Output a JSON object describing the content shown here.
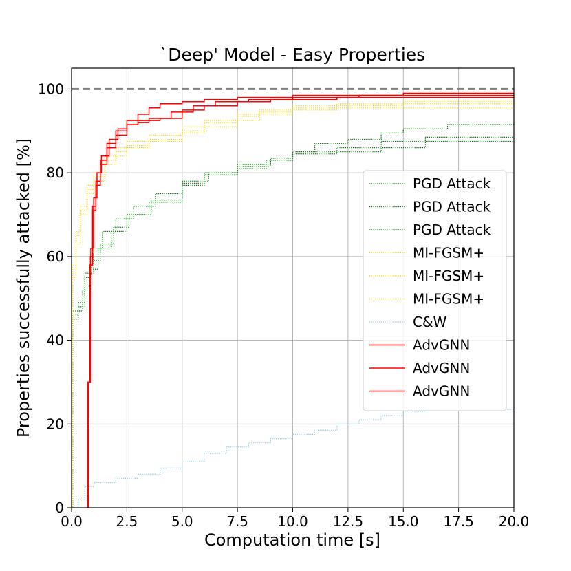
{
  "chart_data": {
    "type": "line",
    "title": "`Deep' Model - Easy Properties",
    "xlabel": "Computation time [s]",
    "ylabel": "Properties successfully attacked [%]",
    "xlim": [
      0,
      20
    ],
    "ylim": [
      0,
      105
    ],
    "x_ticks": [
      0,
      2.5,
      5,
      7.5,
      10,
      12.5,
      15,
      17.5,
      20
    ],
    "x_tick_labels": [
      "0.0",
      "2.5",
      "5.0",
      "7.5",
      "10.0",
      "12.5",
      "15.0",
      "17.5",
      "20.0"
    ],
    "y_ticks": [
      0,
      20,
      40,
      60,
      80,
      100
    ],
    "y_tick_labels": [
      "0",
      "20",
      "40",
      "60",
      "80",
      "100"
    ],
    "grid": true,
    "legend_position": "center-right",
    "reference_line": {
      "y": 100,
      "color": "#808080",
      "style": "dashed"
    },
    "series": [
      {
        "name": "PGD Attack",
        "color": "#008000",
        "style": "dotted",
        "points": [
          [
            0,
            0
          ],
          [
            0.05,
            45
          ],
          [
            0.3,
            47
          ],
          [
            0.5,
            52
          ],
          [
            0.8,
            57
          ],
          [
            1.2,
            62
          ],
          [
            1.8,
            66
          ],
          [
            2.5,
            70
          ],
          [
            3.5,
            73
          ],
          [
            5,
            77
          ],
          [
            6,
            79.5
          ],
          [
            7.5,
            81.5
          ],
          [
            9,
            83
          ],
          [
            10,
            84.5
          ],
          [
            12,
            86
          ],
          [
            14,
            87.5
          ],
          [
            16,
            88.5
          ],
          [
            20,
            89
          ]
        ]
      },
      {
        "name": "PGD Attack",
        "color": "#008000",
        "style": "dotted",
        "points": [
          [
            0,
            0
          ],
          [
            0.05,
            46
          ],
          [
            0.3,
            48
          ],
          [
            0.6,
            55
          ],
          [
            0.9,
            59
          ],
          [
            1.3,
            63
          ],
          [
            1.9,
            67
          ],
          [
            2.6,
            70
          ],
          [
            3.6,
            73.5
          ],
          [
            5,
            77.5
          ],
          [
            6,
            80
          ],
          [
            7.5,
            82
          ],
          [
            9,
            83.5
          ],
          [
            10,
            85
          ],
          [
            12,
            85
          ],
          [
            14,
            86
          ],
          [
            16,
            87.5
          ],
          [
            20,
            88
          ]
        ]
      },
      {
        "name": "PGD Attack",
        "color": "#008000",
        "style": "dotted",
        "points": [
          [
            0,
            0
          ],
          [
            0.05,
            47
          ],
          [
            0.3,
            49
          ],
          [
            0.6,
            56
          ],
          [
            1,
            62
          ],
          [
            1.4,
            66
          ],
          [
            2,
            69
          ],
          [
            2.8,
            72
          ],
          [
            3.8,
            75
          ],
          [
            5,
            78
          ],
          [
            6.2,
            80
          ],
          [
            7.5,
            81
          ],
          [
            8.8,
            83
          ],
          [
            10,
            85
          ],
          [
            11,
            87
          ],
          [
            12.5,
            88
          ],
          [
            14,
            89.5
          ],
          [
            15,
            90.5
          ],
          [
            17,
            91.5
          ],
          [
            20,
            92
          ]
        ]
      },
      {
        "name": "MI-FGSM+",
        "color": "#FFD700",
        "style": "dotted",
        "points": [
          [
            0,
            0
          ],
          [
            0.05,
            55
          ],
          [
            0.2,
            63
          ],
          [
            0.4,
            70
          ],
          [
            0.7,
            75
          ],
          [
            1,
            78
          ],
          [
            1.5,
            82
          ],
          [
            2,
            84
          ],
          [
            2.5,
            86
          ],
          [
            3.5,
            87.5
          ],
          [
            5,
            89.5
          ],
          [
            6,
            91
          ],
          [
            7.5,
            92.5
          ],
          [
            8.5,
            94
          ],
          [
            10,
            95
          ],
          [
            12,
            95.5
          ],
          [
            15,
            95.5
          ],
          [
            20,
            96
          ]
        ]
      },
      {
        "name": "MI-FGSM+",
        "color": "#FFD700",
        "style": "dotted",
        "points": [
          [
            0,
            0
          ],
          [
            0.05,
            57
          ],
          [
            0.2,
            65
          ],
          [
            0.4,
            71
          ],
          [
            0.7,
            76
          ],
          [
            1,
            79
          ],
          [
            1.5,
            83
          ],
          [
            2,
            85
          ],
          [
            2.5,
            86.5
          ],
          [
            3.5,
            88
          ],
          [
            5,
            90
          ],
          [
            6,
            92
          ],
          [
            7.5,
            93.5
          ],
          [
            8.5,
            94.5
          ],
          [
            10,
            95.5
          ],
          [
            12,
            96
          ],
          [
            15,
            96.5
          ],
          [
            20,
            97
          ]
        ]
      },
      {
        "name": "MI-FGSM+",
        "color": "#FFD700",
        "style": "dotted",
        "points": [
          [
            0,
            0
          ],
          [
            0.05,
            58
          ],
          [
            0.2,
            66
          ],
          [
            0.4,
            72
          ],
          [
            0.7,
            77
          ],
          [
            1,
            80
          ],
          [
            1.5,
            84
          ],
          [
            2,
            86
          ],
          [
            2.5,
            87.5
          ],
          [
            3.5,
            89
          ],
          [
            5,
            91
          ],
          [
            6,
            92.5
          ],
          [
            7.5,
            94
          ],
          [
            8.5,
            95
          ],
          [
            10,
            96
          ],
          [
            12,
            96.5
          ],
          [
            15,
            97
          ],
          [
            20,
            98
          ]
        ]
      },
      {
        "name": "C&W",
        "color": "#87CEEB",
        "style": "dotted",
        "points": [
          [
            0,
            0
          ],
          [
            0.3,
            2
          ],
          [
            0.6,
            5
          ],
          [
            1,
            6
          ],
          [
            2,
            7
          ],
          [
            3,
            8
          ],
          [
            4,
            9.5
          ],
          [
            5,
            11
          ],
          [
            6,
            13
          ],
          [
            7,
            14.5
          ],
          [
            8,
            15.5
          ],
          [
            9,
            16.5
          ],
          [
            10,
            17.5
          ],
          [
            11,
            18.5
          ],
          [
            12,
            20
          ],
          [
            13,
            21
          ],
          [
            14,
            22
          ],
          [
            15,
            23
          ],
          [
            16,
            23.5
          ],
          [
            17,
            23.5
          ],
          [
            20,
            24
          ]
        ]
      },
      {
        "name": "AdvGNN",
        "color": "#FF0000",
        "style": "solid",
        "points": [
          [
            0.7,
            0
          ],
          [
            0.75,
            30
          ],
          [
            0.85,
            60
          ],
          [
            0.95,
            72
          ],
          [
            1.1,
            78
          ],
          [
            1.3,
            83
          ],
          [
            1.6,
            87
          ],
          [
            2,
            90
          ],
          [
            2.5,
            92.5
          ],
          [
            3,
            94
          ],
          [
            3.5,
            95.5
          ],
          [
            4,
            96.5
          ],
          [
            5,
            97
          ],
          [
            6,
            97.5
          ],
          [
            7.5,
            98
          ],
          [
            10,
            98.5
          ],
          [
            12,
            98.5
          ],
          [
            15,
            99
          ],
          [
            20,
            99
          ]
        ]
      },
      {
        "name": "AdvGNN",
        "color": "#FF0000",
        "style": "solid",
        "points": [
          [
            0.68,
            0
          ],
          [
            0.73,
            30
          ],
          [
            0.83,
            58
          ],
          [
            0.95,
            71
          ],
          [
            1.1,
            77
          ],
          [
            1.3,
            82
          ],
          [
            1.6,
            86
          ],
          [
            2,
            89
          ],
          [
            2.5,
            91.5
          ],
          [
            3,
            92.5
          ],
          [
            4,
            93
          ],
          [
            5,
            95
          ],
          [
            6,
            96
          ],
          [
            7.5,
            97
          ],
          [
            9,
            97.5
          ],
          [
            12,
            98
          ],
          [
            15,
            98
          ],
          [
            20,
            98
          ]
        ]
      },
      {
        "name": "AdvGNN",
        "color": "#FF0000",
        "style": "solid",
        "points": [
          [
            0.72,
            0
          ],
          [
            0.77,
            30
          ],
          [
            0.87,
            62
          ],
          [
            1,
            74
          ],
          [
            1.15,
            80
          ],
          [
            1.35,
            84
          ],
          [
            1.7,
            88
          ],
          [
            2.1,
            90.5
          ],
          [
            2.5,
            91.5
          ],
          [
            3,
            92
          ],
          [
            3.5,
            93
          ],
          [
            4.5,
            94.5
          ],
          [
            5.5,
            96
          ],
          [
            6.5,
            97
          ],
          [
            8,
            97.5
          ],
          [
            10,
            98
          ],
          [
            13,
            98.5
          ],
          [
            16,
            98.5
          ],
          [
            20,
            98.5
          ]
        ]
      }
    ]
  }
}
